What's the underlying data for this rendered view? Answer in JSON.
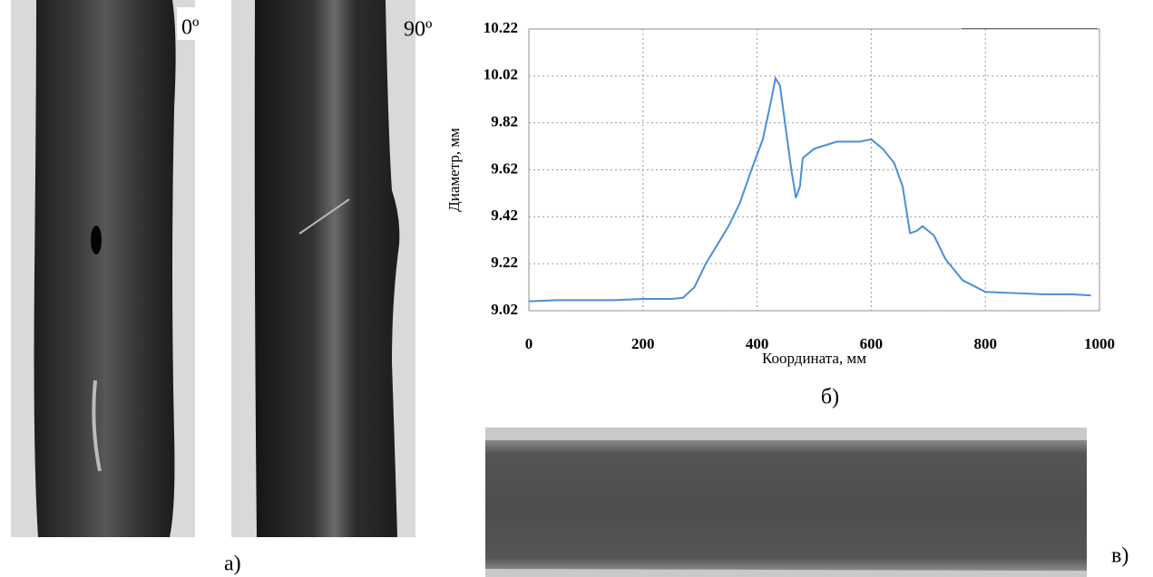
{
  "figure": {
    "angle_0": "0º",
    "angle_90": "90º",
    "label_a": "а)",
    "label_b": "б)",
    "label_c": "в)"
  },
  "chart_data": {
    "type": "line",
    "ylabel": "Диаметр, мм",
    "xlabel": "Координата, мм",
    "x": [
      0,
      50,
      100,
      150,
      200,
      250,
      270,
      290,
      310,
      330,
      350,
      370,
      390,
      410,
      425,
      432,
      440,
      450,
      460,
      468,
      475,
      480,
      500,
      540,
      580,
      600,
      620,
      640,
      655,
      668,
      680,
      690,
      710,
      730,
      760,
      800,
      850,
      900,
      950,
      985
    ],
    "values": [
      9.06,
      9.065,
      9.065,
      9.065,
      9.07,
      9.07,
      9.075,
      9.12,
      9.22,
      9.3,
      9.38,
      9.48,
      9.62,
      9.75,
      9.92,
      10.01,
      9.98,
      9.8,
      9.62,
      9.5,
      9.55,
      9.67,
      9.71,
      9.74,
      9.74,
      9.75,
      9.71,
      9.65,
      9.55,
      9.35,
      9.36,
      9.38,
      9.34,
      9.24,
      9.15,
      9.1,
      9.095,
      9.09,
      9.09,
      9.085
    ],
    "color": "#4a8fd8",
    "xlim": [
      0,
      1000
    ],
    "xticks": [
      0,
      200,
      400,
      600,
      800,
      1000
    ],
    "ylim": [
      9.02,
      10.22
    ],
    "yticks": [
      9.02,
      9.22,
      9.42,
      9.62,
      9.82,
      10.02,
      10.22
    ],
    "grid": true
  }
}
